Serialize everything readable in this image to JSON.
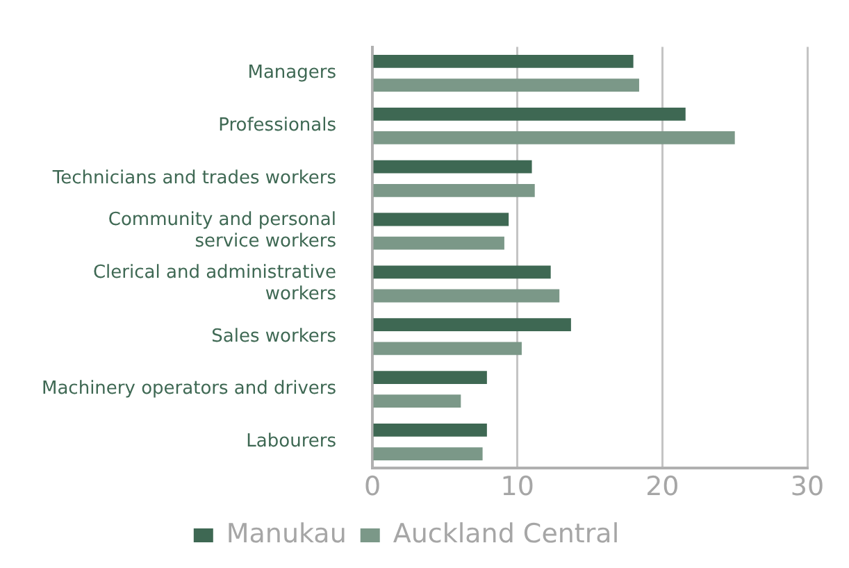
{
  "chart_data": {
    "type": "bar",
    "orientation": "horizontal",
    "categories": [
      "Managers",
      "Professionals",
      "Technicians and trades workers",
      "Community and personal\nservice workers",
      "Clerical and administrative\nworkers",
      "Sales workers",
      "Machinery operators and drivers",
      "Labourers"
    ],
    "series": [
      {
        "name": "Manukau",
        "color": "#3e6853",
        "values": [
          18.0,
          21.6,
          11.0,
          9.4,
          12.3,
          13.7,
          7.9,
          7.9
        ]
      },
      {
        "name": "Auckland Central",
        "color": "#7b9888",
        "values": [
          18.4,
          25.0,
          11.2,
          9.1,
          12.9,
          10.3,
          6.1,
          7.6
        ]
      }
    ],
    "xlim": [
      0,
      30
    ],
    "xticks": [
      0,
      10,
      20,
      30
    ],
    "grid": "x",
    "legend": "bottom"
  }
}
